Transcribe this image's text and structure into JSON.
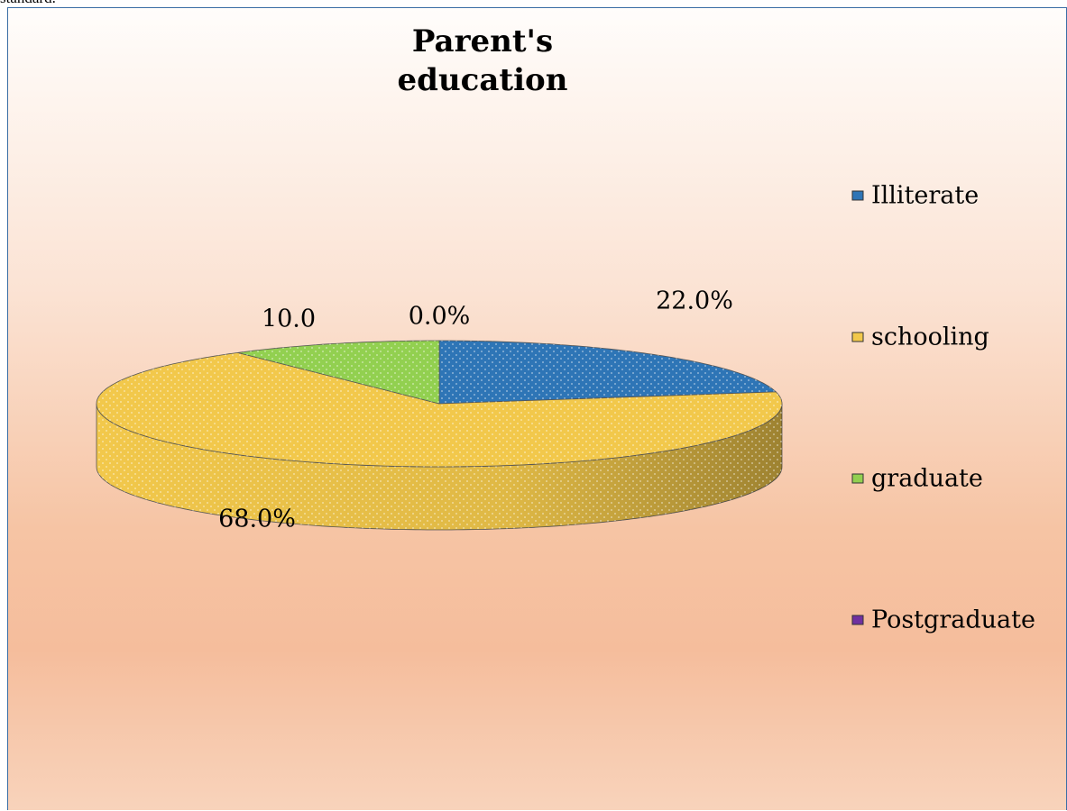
{
  "caption": "standard.",
  "chart_data": {
    "type": "pie",
    "title": "Parent's education",
    "categories": [
      "Illiterate",
      "schooling",
      "graduate",
      "Postgraduate"
    ],
    "values": [
      22,
      68,
      10,
      0
    ],
    "value_labels": [
      "22.0%",
      "68.0%",
      "10.0",
      "0.0%"
    ],
    "colors": [
      "#2e75b6",
      "#f2c84b",
      "#92d050",
      "#7030a0"
    ],
    "legend": "right"
  }
}
